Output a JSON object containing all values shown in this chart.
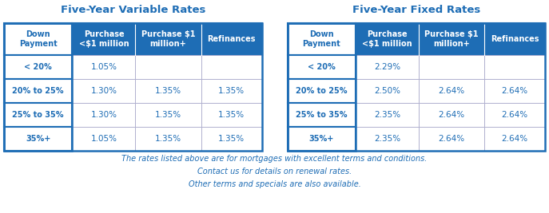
{
  "title_variable": "Five-Year Variable Rates",
  "title_fixed": "Five-Year Fixed Rates",
  "header_bg": "#1E6DB5",
  "header_text_color": "#FFFFFF",
  "blue_text_color": "#1E6DB5",
  "border_color": "#1E6DB5",
  "title_color": "#1E6DB5",
  "footer_color": "#1E6DB5",
  "col_headers": [
    "Down\nPayment",
    "Purchase\n<$1 million",
    "Purchase $1\nmillion+",
    "Refinances"
  ],
  "row_labels": [
    "< 20%",
    "20% to 25%",
    "25% to 35%",
    "35%+"
  ],
  "variable_data": [
    [
      "1.05%",
      "",
      ""
    ],
    [
      "1.30%",
      "1.35%",
      "1.35%"
    ],
    [
      "1.30%",
      "1.35%",
      "1.35%"
    ],
    [
      "1.05%",
      "1.35%",
      "1.35%"
    ]
  ],
  "fixed_data": [
    [
      "2.29%",
      "",
      ""
    ],
    [
      "2.50%",
      "2.64%",
      "2.64%"
    ],
    [
      "2.35%",
      "2.64%",
      "2.64%"
    ],
    [
      "2.35%",
      "2.64%",
      "2.64%"
    ]
  ],
  "footer_lines": [
    "The rates listed above are for mortgages with excellent terms and conditions.",
    "Contact us for details on renewal rates.",
    "Other terms and specials are also available."
  ],
  "figsize": [
    6.87,
    2.67
  ],
  "dpi": 100
}
